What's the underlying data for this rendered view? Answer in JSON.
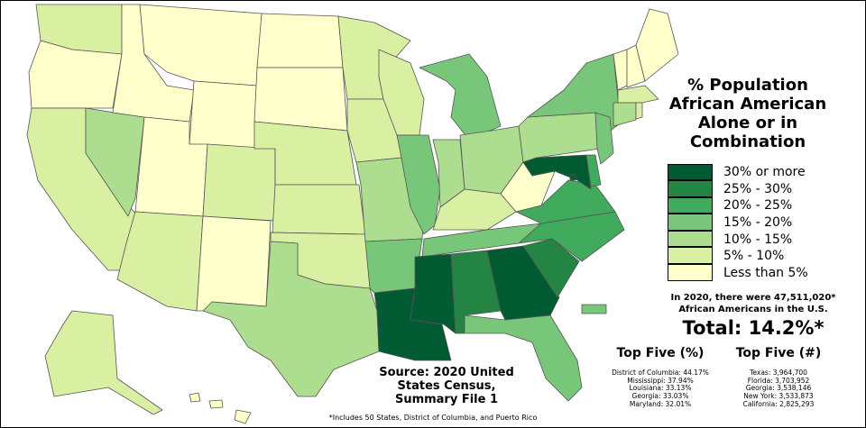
{
  "title": "% Population African American Alone or in Combination",
  "legend": [
    {
      "label": "30% or more",
      "color": "#005a32"
    },
    {
      "label": "25% - 30%",
      "color": "#238443"
    },
    {
      "label": "20% - 25%",
      "color": "#41ab5d"
    },
    {
      "label": "15% - 20%",
      "color": "#78c679"
    },
    {
      "label": "10% - 15%",
      "color": "#addd8e"
    },
    {
      "label": "5% - 10%",
      "color": "#d9f0a3"
    },
    {
      "label": "Less than 5%",
      "color": "#ffffcc"
    }
  ],
  "note_line1": "In 2020, there were 47,511,020*",
  "note_line2": "African Americans in the U.S.",
  "total": "Total: 14.2%*",
  "top_pct": {
    "heading": "Top Five (%)",
    "items": [
      "District of Columbia: 44.17%",
      "Mississippi: 37.94%",
      "Louisiana: 33.13%",
      "Georgia: 33.03%",
      "Maryland: 32.01%"
    ]
  },
  "top_num": {
    "heading": "Top Five (#)",
    "items": [
      "Texas: 3,964,700",
      "Florida: 3,703,952",
      "Georgia: 3,538,146",
      "New York: 3,533,873",
      "California: 2,825,293"
    ]
  },
  "source": [
    "Source: 2020 United",
    "States Census,",
    "Summary File 1"
  ],
  "footnote": "*Includes 50 States, District of Columbia, and Puerto Rico",
  "state_class": {
    "DC": 0,
    "MS": 0,
    "LA": 0,
    "GA": 0,
    "MD": 0,
    "AL": 1,
    "SC": 1,
    "NC": 2,
    "VA": 2,
    "DE": 2,
    "TN": 3,
    "FL": 3,
    "AR": 3,
    "NY": 3,
    "IL": 3,
    "MI": 3,
    "NJ": 3,
    "PR": 3,
    "OH": 4,
    "NV": 4,
    "TX": 4,
    "CT": 4,
    "PA": 4,
    "IN": 4,
    "MO": 4,
    "MA": 5,
    "RI": 5,
    "KY": 5,
    "KS": 5,
    "OK": 5,
    "NE": 5,
    "CO": 5,
    "AZ": 5,
    "CA": 5,
    "WA": 5,
    "MN": 5,
    "WI": 5,
    "IA": 5,
    "AK": 5,
    "WV": 6,
    "OR": 6,
    "ID": 6,
    "MT": 6,
    "WY": 6,
    "UT": 6,
    "NM": 6,
    "ND": 6,
    "SD": 6,
    "VT": 6,
    "NH": 6,
    "ME": 6,
    "HI": 6
  }
}
